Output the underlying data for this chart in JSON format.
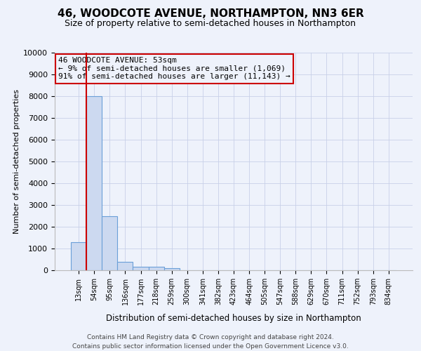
{
  "title": "46, WOODCOTE AVENUE, NORTHAMPTON, NN3 6ER",
  "subtitle": "Size of property relative to semi-detached houses in Northampton",
  "xlabel_bottom": "Distribution of semi-detached houses by size in Northampton",
  "ylabel": "Number of semi-detached properties",
  "footer_line1": "Contains HM Land Registry data © Crown copyright and database right 2024.",
  "footer_line2": "Contains public sector information licensed under the Open Government Licence v3.0.",
  "categories": [
    "13sqm",
    "54sqm",
    "95sqm",
    "136sqm",
    "177sqm",
    "218sqm",
    "259sqm",
    "300sqm",
    "341sqm",
    "382sqm",
    "423sqm",
    "464sqm",
    "505sqm",
    "547sqm",
    "588sqm",
    "629sqm",
    "670sqm",
    "711sqm",
    "752sqm",
    "793sqm",
    "834sqm"
  ],
  "values": [
    1300,
    8000,
    2500,
    400,
    150,
    150,
    100,
    0,
    0,
    0,
    0,
    0,
    0,
    0,
    0,
    0,
    0,
    0,
    0,
    0,
    0
  ],
  "bar_color": "#ccd9f0",
  "bar_edge_color": "#6a9fd8",
  "ylim": [
    0,
    10000
  ],
  "yticks": [
    0,
    1000,
    2000,
    3000,
    4000,
    5000,
    6000,
    7000,
    8000,
    9000,
    10000
  ],
  "property_line_color": "#cc0000",
  "annotation_text_line1": "46 WOODCOTE AVENUE: 53sqm",
  "annotation_text_line2": "← 9% of semi-detached houses are smaller (1,069)",
  "annotation_text_line3": "91% of semi-detached houses are larger (11,143) →",
  "bg_color": "#eef2fb",
  "grid_color": "#c8d0e8",
  "title_fontsize": 11,
  "subtitle_fontsize": 9,
  "annotation_fontsize": 8
}
